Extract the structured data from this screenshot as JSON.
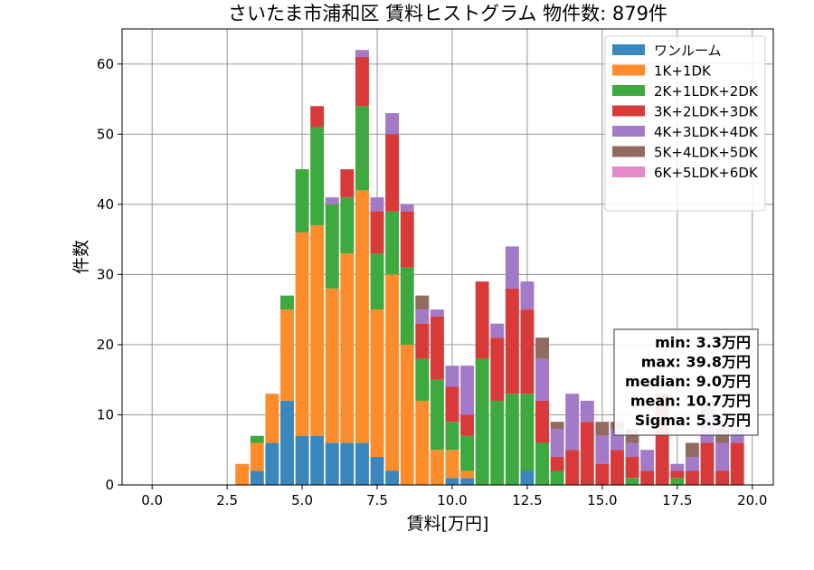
{
  "chart_data": {
    "type": "bar",
    "stacked": true,
    "title": "さいたま市浦和区 賃料ヒストグラム 物件数: 879件",
    "xlabel": "賃料[万円]",
    "ylabel": "件数",
    "xlim": [
      -1,
      20.7
    ],
    "ylim": [
      0,
      65
    ],
    "xticks": [
      "0.0",
      "2.5",
      "5.0",
      "7.5",
      "10.0",
      "12.5",
      "15.0",
      "17.5",
      "20.0"
    ],
    "yticks": [
      "0",
      "10",
      "20",
      "30",
      "40",
      "50",
      "60"
    ],
    "grid": true,
    "legend_position": "top-right",
    "bin_width": 0.5,
    "bin_starts": [
      2.75,
      3.25,
      3.75,
      4.25,
      4.75,
      5.25,
      5.75,
      6.25,
      6.75,
      7.25,
      7.75,
      8.25,
      8.75,
      9.25,
      9.75,
      10.25,
      10.75,
      11.25,
      11.75,
      12.25,
      12.75,
      13.25,
      13.75,
      14.25,
      14.75,
      15.25,
      15.75,
      16.25,
      16.75,
      17.25,
      17.75,
      18.25,
      18.75,
      19.25
    ],
    "series": [
      {
        "name": "ワンルーム",
        "color": "#3a87bd",
        "values": [
          0,
          2,
          6,
          12,
          7,
          7,
          6,
          6,
          6,
          4,
          2,
          0,
          0,
          0,
          1,
          1,
          0,
          0,
          0,
          2,
          0,
          0,
          0,
          0,
          0,
          0,
          0,
          0,
          0,
          0,
          0,
          0,
          0,
          0
        ]
      },
      {
        "name": "1K+1DK",
        "color": "#ff8c2a",
        "values": [
          3,
          4,
          7,
          13,
          29,
          30,
          22,
          27,
          36,
          21,
          28,
          20,
          12,
          5,
          4,
          1,
          0,
          0,
          0,
          0,
          0,
          0,
          0,
          0,
          0,
          0,
          0,
          0,
          0,
          0,
          0,
          0,
          0,
          0
        ]
      },
      {
        "name": "2K+1LDK+2DK",
        "color": "#3ea93e",
        "values": [
          0,
          1,
          0,
          2,
          9,
          14,
          12,
          8,
          12,
          8,
          9,
          11,
          6,
          10,
          4,
          5,
          18,
          12,
          13,
          11,
          6,
          2,
          0,
          0,
          0,
          0,
          1,
          0,
          0,
          1,
          0,
          0,
          0,
          0
        ]
      },
      {
        "name": "3K+2LDK+3DK",
        "color": "#d83a3a",
        "values": [
          0,
          0,
          0,
          0,
          0,
          3,
          0,
          4,
          7,
          6,
          11,
          8,
          5,
          9,
          5,
          3,
          11,
          9,
          15,
          12,
          6,
          2,
          5,
          9,
          3,
          5,
          3,
          2,
          13,
          1,
          2,
          6,
          2,
          6
        ]
      },
      {
        "name": "4K+3LDK+4DK",
        "color": "#a37ac7",
        "values": [
          0,
          0,
          0,
          0,
          0,
          0,
          1,
          0,
          1,
          2,
          3,
          1,
          2,
          1,
          3,
          7,
          0,
          2,
          6,
          4,
          6,
          4,
          8,
          3,
          4,
          3,
          2,
          3,
          0,
          1,
          2,
          4,
          4,
          2
        ]
      },
      {
        "name": "5K+4LDK+5DK",
        "color": "#926b60",
        "values": [
          0,
          0,
          0,
          0,
          0,
          0,
          0,
          0,
          0,
          0,
          0,
          0,
          2,
          0,
          0,
          0,
          0,
          0,
          0,
          0,
          3,
          1,
          0,
          0,
          2,
          1,
          2,
          0,
          0,
          0,
          2,
          2,
          2,
          0
        ]
      },
      {
        "name": "6K+5LDK+6DK",
        "color": "#e38acb",
        "values": [
          0,
          0,
          0,
          0,
          0,
          0,
          0,
          0,
          0,
          0,
          0,
          0,
          0,
          0,
          0,
          0,
          0,
          0,
          0,
          0,
          0,
          0,
          0,
          0,
          0,
          0,
          0,
          0,
          0,
          0,
          0,
          0,
          1,
          0
        ]
      }
    ],
    "stats": [
      "min: 3.3万円",
      "max: 39.8万円",
      "median: 9.0万円",
      "mean: 10.7万円",
      "Sigma: 5.3万円"
    ]
  }
}
